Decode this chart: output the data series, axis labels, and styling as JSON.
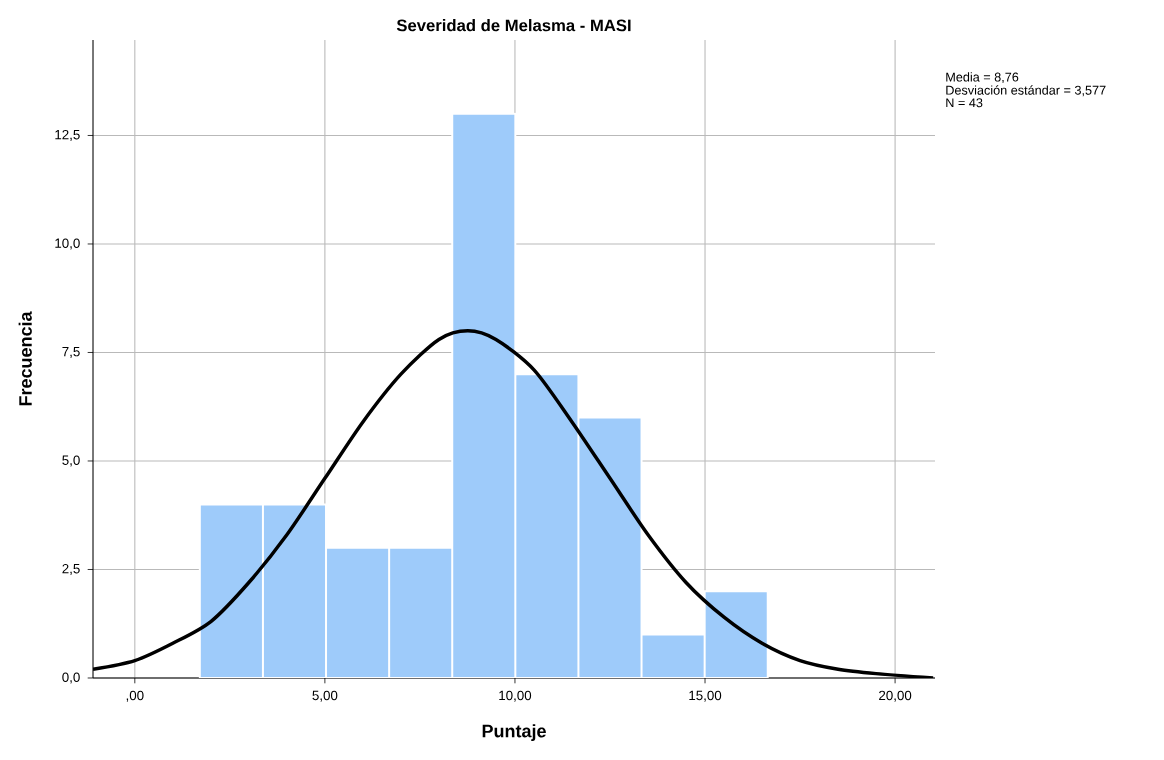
{
  "chart_data": {
    "type": "histogram",
    "title": "Severidad de Melasma - MASI",
    "xlabel": "Puntaje",
    "ylabel": "Frecuencia",
    "annotations": [
      "Media = 8,76",
      "Desviación estándar = 3,577",
      "N = 43"
    ],
    "xlim": [
      -1.1,
      21.05
    ],
    "ylim": [
      0,
      14.7
    ],
    "xticks": [
      {
        "value": 0,
        "label": ",00"
      },
      {
        "value": 5,
        "label": "5,00"
      },
      {
        "value": 10,
        "label": "10,00"
      },
      {
        "value": 15,
        "label": "15,00"
      },
      {
        "value": 20,
        "label": "20,00"
      }
    ],
    "yticks": [
      {
        "value": 0,
        "label": "0,0"
      },
      {
        "value": 2.5,
        "label": "2,5"
      },
      {
        "value": 5,
        "label": "5,0"
      },
      {
        "value": 7.5,
        "label": "7,5"
      },
      {
        "value": 10,
        "label": "10,0"
      },
      {
        "value": 12.5,
        "label": "12,5"
      }
    ],
    "grid": true,
    "series": [
      {
        "color": "#9ecbfa",
        "bins": [
          1.71,
          3.37,
          5.03,
          6.69,
          8.35,
          10.01,
          11.67,
          13.33,
          14.99,
          16.65
        ],
        "values": [
          4,
          4,
          3,
          3,
          13,
          7,
          6,
          1,
          2
        ]
      },
      {
        "type": "line",
        "color": "#000000",
        "x": [
          -1.1,
          0,
          1,
          2,
          3,
          4,
          5,
          6,
          7,
          8,
          8.76,
          9.5,
          10.5,
          11.5,
          12.5,
          13.5,
          14.5,
          15.5,
          16.5,
          17.5,
          18.5,
          19.5,
          21
        ],
        "values": [
          0.2,
          0.4,
          0.8,
          1.3,
          2.2,
          3.3,
          4.6,
          5.9,
          7.0,
          7.8,
          8.0,
          7.8,
          7.1,
          5.9,
          4.6,
          3.3,
          2.2,
          1.4,
          0.8,
          0.4,
          0.2,
          0.1,
          0.0
        ]
      }
    ]
  }
}
